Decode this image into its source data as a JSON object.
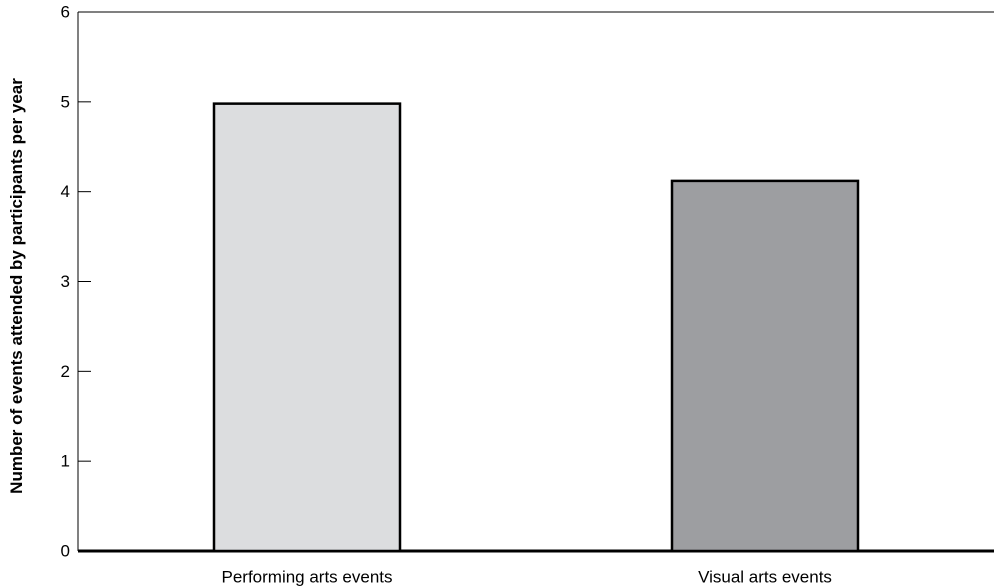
{
  "chart_data": {
    "type": "bar",
    "title": "",
    "xlabel": "",
    "ylabel": "Number of events attended by participants per year",
    "ylim": [
      0,
      6
    ],
    "yticks": [
      0,
      1,
      2,
      3,
      4,
      5,
      6
    ],
    "categories": [
      "Performing arts events",
      "Visual arts events"
    ],
    "values": [
      4.98,
      4.12
    ],
    "bar_colors": [
      "#dcdddf",
      "#9d9ea1"
    ],
    "grid": false,
    "legend": "none"
  }
}
